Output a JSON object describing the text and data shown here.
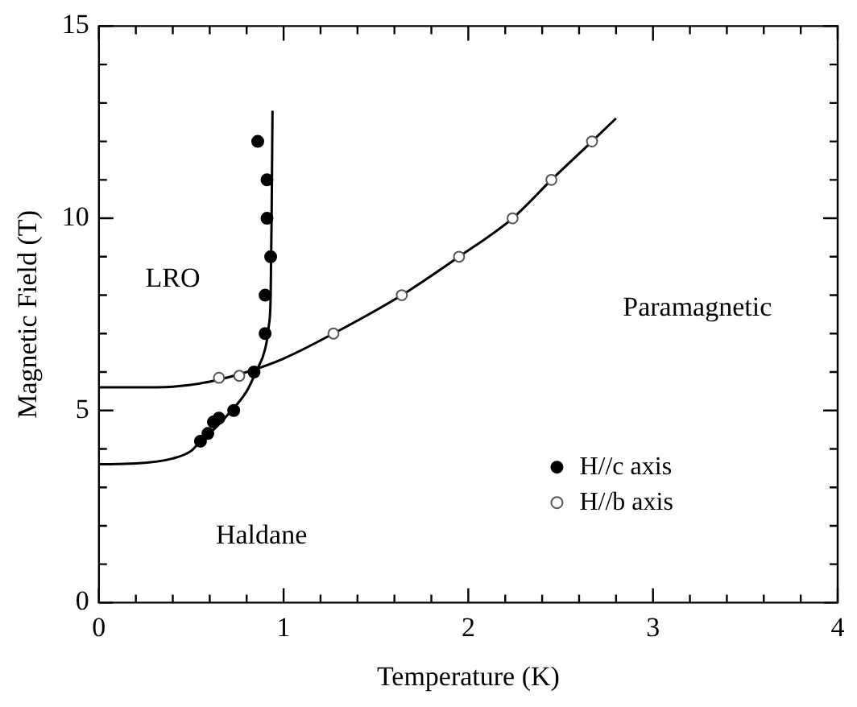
{
  "chart_data": {
    "type": "scatter",
    "xlabel": "Temperature (K)",
    "ylabel": "Magnetic Field (T)",
    "xlim": [
      0,
      4
    ],
    "xticks": [
      0,
      1,
      2,
      3,
      4
    ],
    "ylim": [
      0,
      15
    ],
    "yticks": [
      0,
      5,
      10,
      15
    ],
    "grid": false,
    "legend": "bottom right",
    "marker": "circle",
    "series": [
      {
        "name": "H//c axis",
        "color": "#000000",
        "x": [
          0.86,
          0.91,
          0.91,
          0.93,
          0.9,
          0.9,
          0.84,
          0.73,
          0.65,
          0.62,
          0.59,
          0.55
        ],
        "values": [
          12.0,
          11.0,
          10.0,
          9.0,
          8.0,
          7.0,
          6.0,
          5.0,
          4.8,
          4.7,
          4.4,
          4.2
        ]
      },
      {
        "name": "H//b axis",
        "color": "#555555",
        "x": [
          0.65,
          0.76,
          1.27,
          1.64,
          1.95,
          2.24,
          2.45,
          2.67
        ],
        "values": [
          5.85,
          5.9,
          7.0,
          8.0,
          9.0,
          10.0,
          11.0,
          12.0
        ]
      },
      {
        "type": "line",
        "color": "#000000",
        "marker": "none",
        "x": [
          0,
          0.2,
          0.4,
          0.5,
          0.55,
          0.6,
          0.7,
          0.8,
          0.85,
          0.9,
          0.92,
          0.93,
          0.935,
          0.94
        ],
        "values": [
          3.6,
          3.62,
          3.75,
          3.95,
          4.2,
          4.4,
          4.9,
          5.5,
          6.0,
          6.6,
          7.2,
          8.0,
          10.0,
          12.8
        ]
      },
      {
        "type": "line",
        "color": "#000000",
        "marker": "none",
        "x": [
          0,
          0.2,
          0.4,
          0.6,
          0.8,
          1.0,
          1.27,
          1.64,
          1.95,
          2.24,
          2.45,
          2.67,
          2.8
        ],
        "values": [
          5.6,
          5.6,
          5.62,
          5.75,
          6.0,
          6.35,
          7.0,
          8.0,
          9.0,
          10.0,
          11.0,
          12.0,
          12.6
        ]
      }
    ],
    "annotations": [
      "LRO",
      "Haldane",
      "Paramagnetic"
    ]
  }
}
